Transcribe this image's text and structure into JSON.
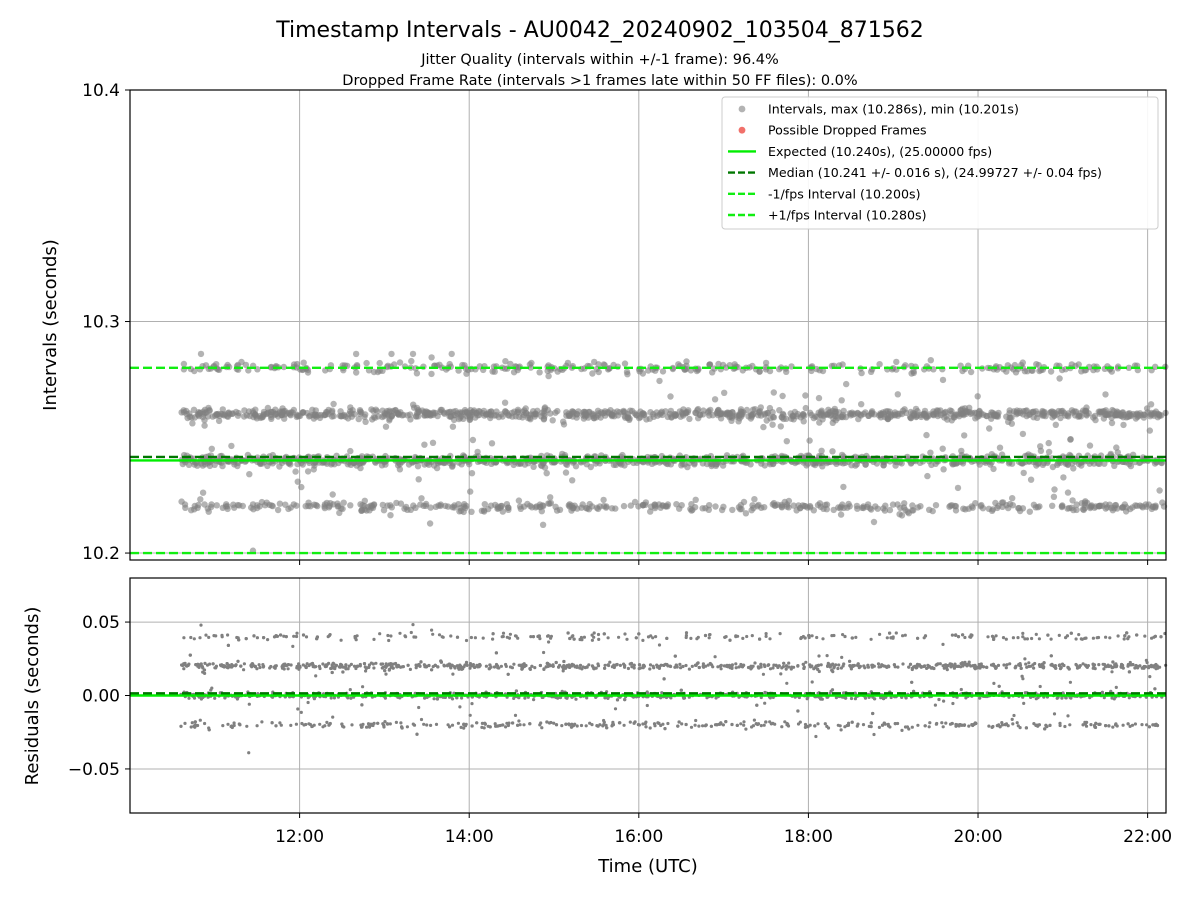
{
  "figure": {
    "title": "Timestamp Intervals - AU0042_20240902_103504_871562",
    "subtitle_1": "Jitter Quality (intervals within +/-1 frame): 96.4%",
    "subtitle_2": "Dropped Frame Rate (intervals >1 frames late within 50 FF files): 0.0%"
  },
  "colors": {
    "points": "#808080",
    "dropped": "#f0605a",
    "expected": "#00ee00",
    "median": "#007700",
    "bounds": "#11ee11",
    "grid": "#b0b0b0"
  },
  "chart_data": [
    {
      "type": "scatter",
      "panel": "intervals",
      "xlabel": "",
      "ylabel": "Intervals (seconds)",
      "xlim": [
        "10:00",
        "22:13"
      ],
      "ylim": [
        10.197,
        10.4
      ],
      "y_ticks": [
        10.2,
        10.3,
        10.4
      ],
      "y_tick_labels": [
        "10.2",
        "10.3",
        "10.4"
      ],
      "x_ticks": [
        "12:00",
        "14:00",
        "16:00",
        "18:00",
        "20:00",
        "22:00"
      ],
      "grid": true,
      "legend_position": "top-right",
      "legend": [
        "Intervals, max (10.286s), min (10.201s)",
        "Possible Dropped Frames",
        "Expected (10.240s), (25.00000 fps)",
        "Median (10.241 +/- 0.016 s), (24.99727 +/- 0.04 fps)",
        "-1/fps Interval (10.200s)",
        "+1/fps Interval (10.280s)"
      ],
      "x_range": [
        "10:36",
        "22:13"
      ],
      "series": [
        {
          "name": "Intervals, max (10.286s), min (10.201s)",
          "bands": [
            10.22,
            10.24,
            10.26,
            10.28
          ],
          "band_shares": [
            0.16,
            0.36,
            0.36,
            0.12
          ],
          "max": 10.286,
          "min": 10.201
        },
        {
          "name": "Possible Dropped Frames",
          "values": []
        }
      ],
      "reference_lines": [
        {
          "name": "Expected (10.240s), (25.00000 fps)",
          "y": 10.24,
          "style": "solid"
        },
        {
          "name": "Median (10.241 +/- 0.016 s), (24.99727 +/- 0.04 fps)",
          "y": 10.2415,
          "style": "dashed"
        },
        {
          "name": "-1/fps Interval (10.200s)",
          "y": 10.2,
          "style": "dashed"
        },
        {
          "name": "+1/fps Interval (10.280s)",
          "y": 10.28,
          "style": "dashed"
        }
      ]
    },
    {
      "type": "scatter",
      "panel": "residuals",
      "xlabel": "Time (UTC)",
      "ylabel": "Residuals (seconds)",
      "xlim": [
        "10:00",
        "22:13"
      ],
      "ylim": [
        -0.08,
        0.08
      ],
      "y_ticks": [
        -0.05,
        0.0,
        0.05
      ],
      "y_tick_labels": [
        "−0.05",
        "0.00",
        "0.05"
      ],
      "x_ticks": [
        "12:00",
        "14:00",
        "16:00",
        "18:00",
        "20:00",
        "22:00"
      ],
      "grid": true,
      "x_range": [
        "10:36",
        "22:13"
      ],
      "series": [
        {
          "bands": [
            -0.02,
            0.0,
            0.02,
            0.04
          ],
          "band_shares": [
            0.16,
            0.36,
            0.36,
            0.12
          ],
          "outliers": [
            {
              "x": "11:24",
              "y": -0.039
            }
          ]
        }
      ],
      "reference_lines": [
        {
          "y": 0.0,
          "style": "solid"
        },
        {
          "y": 0.0015,
          "style": "dashed"
        }
      ]
    }
  ]
}
